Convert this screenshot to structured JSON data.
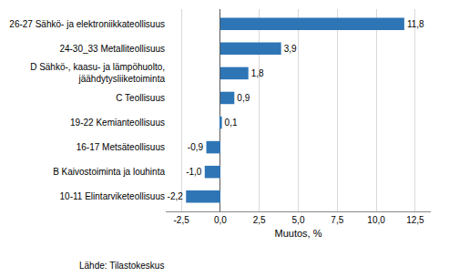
{
  "chart_data": {
    "type": "bar",
    "orientation": "horizontal",
    "categories": [
      "10-11 Elintarviketeollisuus",
      "B Kaivostoiminta ja louhinta",
      "16-17 Metsäteollisuus",
      "19-22 Kemianteollisuus",
      "C Teollisuus",
      "D Sähkö-, kaasu- ja lämpöhuolto,\njäähdytysliiketoiminta",
      "24-30_33 Metalliteollisuus",
      "26-27 Sähkö- ja elektroniikkateollisuus"
    ],
    "values": [
      -2.2,
      -1.0,
      -0.9,
      0.1,
      0.9,
      1.8,
      3.9,
      11.8
    ],
    "value_labels": [
      "-2,2",
      "-1,0",
      "-0,9",
      "0,1",
      "0,9",
      "1,8",
      "3,9",
      "11,8"
    ],
    "data_labels": true,
    "color": "#2E75B6",
    "xlabel": "Muutos, %",
    "xlim": [
      -3.5,
      13.5
    ],
    "xticks": [
      {
        "value": -2.5,
        "label": "-2,5"
      },
      {
        "value": 0.0,
        "label": "0,0"
      },
      {
        "value": 2.5,
        "label": "2,5"
      },
      {
        "value": 5.0,
        "label": "5,0"
      },
      {
        "value": 7.5,
        "label": "7,5"
      },
      {
        "value": 10.0,
        "label": "10,0"
      },
      {
        "value": 12.5,
        "label": "12,5"
      }
    ],
    "grid": true,
    "footnote": "Lähde: Tilastokeskus"
  }
}
